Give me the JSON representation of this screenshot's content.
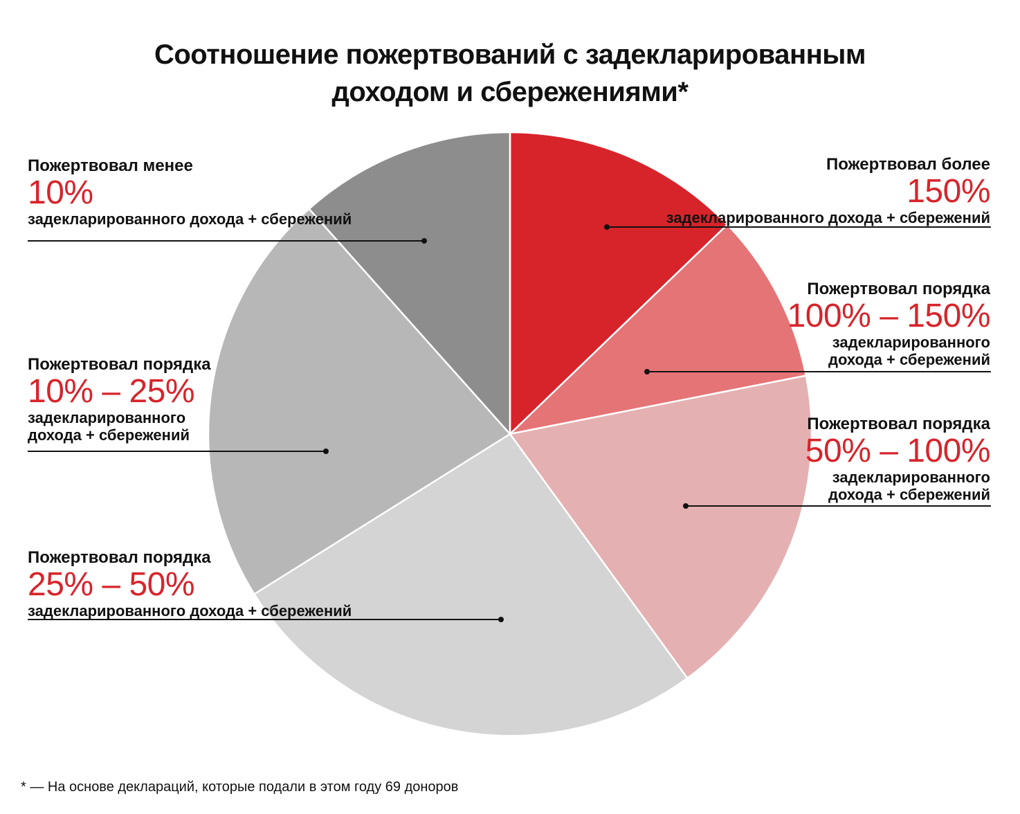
{
  "title_line1": "Соотношение пожертвований с задекларированным",
  "title_line2": "доходом и сбережениями*",
  "chart_data": {
    "type": "pie",
    "title": "Соотношение пожертвований с задекларированным доходом и сбережениями*",
    "slices": [
      {
        "pre": "Пожертвовал более",
        "pct": "150%",
        "post1": "задекларированного дохода + сбережений",
        "post2": "",
        "value": 12.8,
        "color": "#d7242b"
      },
      {
        "pre": "Пожертвовал порядка",
        "pct": "100% – 150%",
        "post1": "задекларированного",
        "post2": "дохода + сбережений",
        "value": 9.1,
        "color": "#e57477"
      },
      {
        "pre": "Пожертвовал порядка",
        "pct": "50% – 100%",
        "post1": "задекларированного",
        "post2": "дохода + сбережений",
        "value": 18.1,
        "color": "#e5b0b1"
      },
      {
        "pre": "Пожертвовал порядка",
        "pct": "25% – 50%",
        "post1": "задекларированного дохода + сбережений",
        "post2": "",
        "value": 26.1,
        "color": "#d4d4d4"
      },
      {
        "pre": "Пожертвовал порядка",
        "pct": "10% – 25%",
        "post1": "задекларированного",
        "post2": "дохода + сбережений",
        "value": 22.3,
        "color": "#b7b7b7"
      },
      {
        "pre": "Пожертвовал менее",
        "pct": "10%",
        "post1": "задекларированного дохода + сбережений",
        "post2": "",
        "value": 11.6,
        "color": "#8d8d8d"
      }
    ]
  },
  "footnote": "* — На основе деклараций, которые подали в этом году 69 доноров"
}
